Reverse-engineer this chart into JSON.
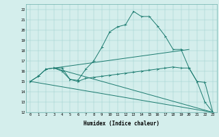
{
  "title": "",
  "xlabel": "Humidex (Indice chaleur)",
  "bg_color": "#d4eeec",
  "line_color": "#1a7a6e",
  "xlim": [
    -0.5,
    23.5
  ],
  "ylim": [
    12,
    22.5
  ],
  "xticks": [
    0,
    1,
    2,
    3,
    4,
    5,
    6,
    7,
    8,
    9,
    10,
    11,
    12,
    13,
    14,
    15,
    16,
    17,
    18,
    19,
    20,
    21,
    22,
    23
  ],
  "yticks": [
    12,
    13,
    14,
    15,
    16,
    17,
    18,
    19,
    20,
    21,
    22
  ],
  "curve1_x": [
    0,
    1,
    2,
    3,
    4,
    5,
    6,
    7,
    8,
    9,
    10,
    11,
    12,
    13,
    14,
    15,
    16,
    17,
    18,
    19,
    20,
    21,
    22,
    23
  ],
  "curve1_y": [
    15,
    15.5,
    16.2,
    16.3,
    16.0,
    15.2,
    15.1,
    16.2,
    17.0,
    18.3,
    19.8,
    20.3,
    20.5,
    21.8,
    21.3,
    21.3,
    20.4,
    19.4,
    18.1,
    18.1,
    16.3,
    15.0,
    13.0,
    12.0
  ],
  "curve2_x": [
    0,
    1,
    2,
    3,
    4,
    5,
    6,
    7,
    8,
    9,
    10,
    11,
    12,
    13,
    14,
    15,
    16,
    17,
    18,
    19,
    20,
    21,
    22,
    23
  ],
  "curve2_y": [
    15,
    15.5,
    16.2,
    16.3,
    16.3,
    15.2,
    15.0,
    15.3,
    15.4,
    15.5,
    15.6,
    15.7,
    15.8,
    15.9,
    16.0,
    16.1,
    16.2,
    16.3,
    16.4,
    16.3,
    16.3,
    15.0,
    14.9,
    12.0
  ],
  "line1_x": [
    0,
    23
  ],
  "line1_y": [
    15,
    12.0
  ],
  "line2_x": [
    3,
    20
  ],
  "line2_y": [
    16.3,
    18.1
  ],
  "line3_x": [
    3,
    23
  ],
  "line3_y": [
    16.3,
    12.0
  ]
}
